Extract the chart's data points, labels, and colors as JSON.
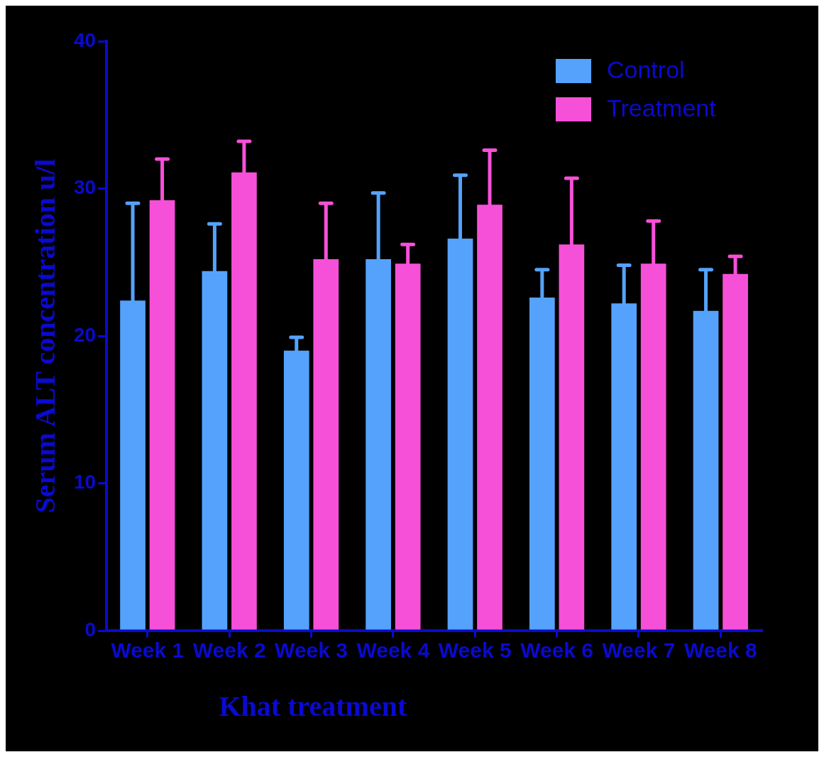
{
  "chart_data": {
    "type": "bar",
    "xlabel": "Khat treatment",
    "ylabel": "Serum ALT concentration u/l",
    "categories": [
      "Week 1",
      "Week 2",
      "Week 3",
      "Week 4",
      "Week 5",
      "Week 6",
      "Week 7",
      "Week 8"
    ],
    "series": [
      {
        "name": "Control",
        "color": "#55a2fc",
        "values": [
          22.4,
          24.4,
          19.0,
          25.2,
          26.6,
          22.6,
          22.2,
          21.7
        ],
        "errors": [
          [
            22.4,
            29.0
          ],
          [
            24.4,
            27.6
          ],
          [
            19.0,
            19.9
          ],
          [
            25.2,
            29.7
          ],
          [
            26.6,
            30.9
          ],
          [
            22.6,
            24.5
          ],
          [
            22.2,
            24.8
          ],
          [
            21.7,
            24.5
          ]
        ]
      },
      {
        "name": "Treatment",
        "color": "#f650d8",
        "values": [
          29.2,
          31.1,
          25.2,
          24.9,
          28.9,
          26.2,
          24.9,
          24.2
        ],
        "errors": [
          [
            29.2,
            32.0
          ],
          [
            31.1,
            33.2
          ],
          [
            25.2,
            29.0
          ],
          [
            24.9,
            26.2
          ],
          [
            28.9,
            32.6
          ],
          [
            26.2,
            30.7
          ],
          [
            24.9,
            27.8
          ],
          [
            24.2,
            25.4
          ]
        ]
      }
    ],
    "ylim": [
      0,
      40
    ],
    "yticks": [
      0,
      10,
      20,
      30,
      40
    ],
    "legend": "top right"
  }
}
